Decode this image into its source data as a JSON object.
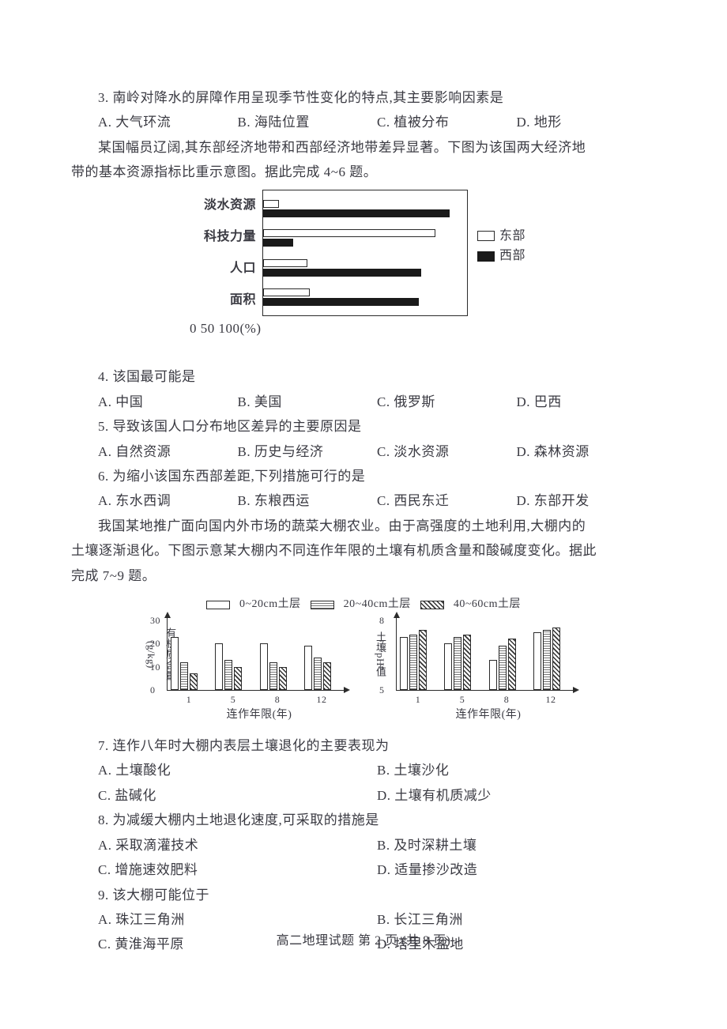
{
  "q3": {
    "stem": "3. 南岭对降水的屏障作用呈现季节性变化的特点,其主要影响因素是",
    "a": "A. 大气环流",
    "b": "B. 海陆位置",
    "c": "C. 植被分布",
    "d": "D. 地形"
  },
  "intro46_l1": "某国幅员辽阔,其东部经济地带和西部经济地带差异显著。下图为该国两大经济地",
  "intro46_l2": "带的基本资源指标比重示意图。据此完成 4~6 题。",
  "chart1": {
    "categories": [
      "淡水资源",
      "科技力量",
      "人口",
      "面积"
    ],
    "east": [
      8,
      85,
      22,
      23
    ],
    "west": [
      92,
      15,
      78,
      77
    ],
    "legend": {
      "east": "东部",
      "west": "西部"
    },
    "xticks": {
      "t0": "0",
      "t50": "50",
      "t100": "100(%)"
    },
    "bar_colors": {
      "east": "#ffffff",
      "west": "#1a1a1a"
    },
    "border_color": "#2b2b2b",
    "xlim": [
      0,
      100
    ]
  },
  "q4": {
    "stem": "4. 该国最可能是",
    "a": "A. 中国",
    "b": "B. 美国",
    "c": "C. 俄罗斯",
    "d": "D. 巴西"
  },
  "q5": {
    "stem": "5. 导致该国人口分布地区差异的主要原因是",
    "a": "A. 自然资源",
    "b": "B. 历史与经济",
    "c": "C. 淡水资源",
    "d": "D. 森林资源"
  },
  "q6": {
    "stem": "6. 为缩小该国东西部差距,下列措施可行的是",
    "a": "A. 东水西调",
    "b": "B. 东粮西运",
    "c": "C. 西民东迁",
    "d": "D. 东部开发"
  },
  "intro79_l1": "我国某地推广面向国内外市场的蔬菜大棚农业。由于高强度的土地利用,大棚内的",
  "intro79_l2": "土壤逐渐退化。下图示意某大棚内不同连作年限的土壤有机质含量和酸碱度变化。据此",
  "intro79_l3": "完成 7~9 题。",
  "chart2": {
    "legend": {
      "a": "0~20cm土层",
      "b": "20~40cm土层",
      "c": "40~60cm土层"
    },
    "x_categories": [
      1,
      5,
      8,
      12
    ],
    "x_label": "连作年限(年)",
    "left": {
      "y_label": "有机质含量(g/kg)",
      "ylim": [
        0,
        30
      ],
      "yticks": [
        0,
        10,
        20,
        30
      ],
      "values": {
        "a": [
          23,
          20,
          20,
          19
        ],
        "b": [
          12,
          13,
          12,
          14
        ],
        "c": [
          7,
          10,
          10,
          12
        ]
      }
    },
    "right": {
      "y_label": "土壤pH值",
      "ylim": [
        5,
        8
      ],
      "yticks": [
        5,
        6,
        7,
        8
      ],
      "values": {
        "a": [
          7.3,
          7.0,
          6.3,
          7.5
        ],
        "b": [
          7.4,
          7.3,
          6.9,
          7.6
        ],
        "c": [
          7.6,
          7.4,
          7.2,
          7.7
        ]
      }
    },
    "colors": {
      "a": "#ffffff",
      "b": "#bbbbbb",
      "c": "#555555"
    },
    "border_color": "#2b2b2b"
  },
  "q7": {
    "stem": "7. 连作八年时大棚内表层土壤退化的主要表现为",
    "a": "A. 土壤酸化",
    "b": "B. 土壤沙化",
    "c": "C. 盐碱化",
    "d": "D. 土壤有机质减少"
  },
  "q8": {
    "stem": "8. 为减缓大棚内土地退化速度,可采取的措施是",
    "a": "A. 采取滴灌技术",
    "b": "B. 及时深耕土壤",
    "c": "C. 增施速效肥料",
    "d": "D. 适量掺沙改造"
  },
  "q9": {
    "stem": "9. 该大棚可能位于",
    "a": "A. 珠江三角洲",
    "b": "B. 长江三角洲",
    "c": "C. 黄淮海平原",
    "d": "D. 塔里木盆地"
  },
  "footer": "高二地理试题  第 2 页   (共 8 页)"
}
